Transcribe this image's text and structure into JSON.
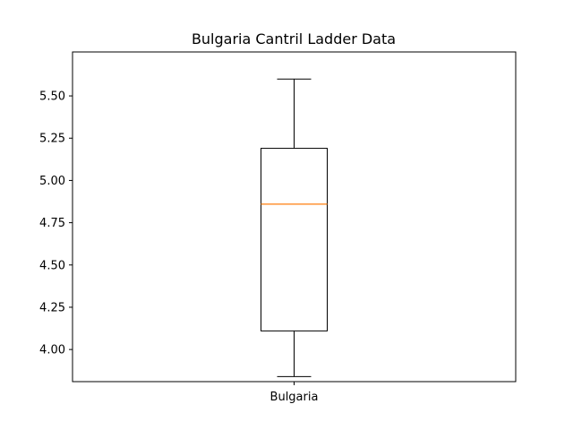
{
  "chart_data": {
    "type": "box",
    "title": "Bulgaria Cantril Ladder Data",
    "xlabel": "",
    "ylabel": "",
    "categories": [
      "Bulgaria"
    ],
    "boxes": [
      {
        "label": "Bulgaria",
        "whisker_low": 3.84,
        "q1": 4.11,
        "median": 4.86,
        "q3": 5.19,
        "whisker_high": 5.6
      }
    ],
    "ylim": [
      3.81,
      5.76
    ],
    "yticks": [
      4.0,
      4.25,
      4.5,
      4.75,
      5.0,
      5.25,
      5.5
    ],
    "ytick_labels": [
      "4.00",
      "4.25",
      "4.50",
      "4.75",
      "5.00",
      "5.25",
      "5.50"
    ],
    "grid": false,
    "colors": {
      "box": "#000000",
      "median": "#ff7f0e"
    }
  }
}
